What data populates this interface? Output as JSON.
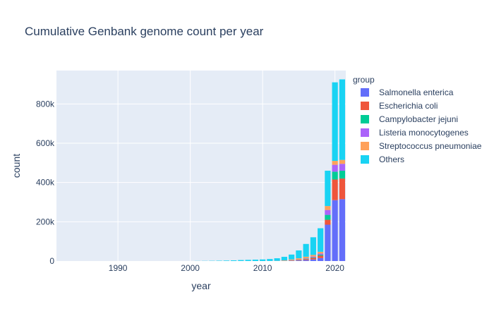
{
  "chart_data": {
    "type": "bar",
    "stacked": true,
    "title": "Cumulative Genbank genome count per year",
    "xlabel": "year",
    "ylabel": "count",
    "xlim": [
      1981.5,
      2021.5
    ],
    "ylim": [
      0,
      970000
    ],
    "xticks": [
      1990,
      2000,
      2010,
      2020
    ],
    "yticks": [
      0,
      200000,
      400000,
      600000,
      800000
    ],
    "ytick_labels": [
      "0",
      "200k",
      "400k",
      "600k",
      "800k"
    ],
    "grid": true,
    "legend": {
      "title": "group",
      "position": "right"
    },
    "x": [
      1982,
      1983,
      1984,
      1985,
      1986,
      1987,
      1988,
      1989,
      1990,
      1991,
      1992,
      1993,
      1994,
      1995,
      1996,
      1997,
      1998,
      1999,
      2000,
      2001,
      2002,
      2003,
      2004,
      2005,
      2006,
      2007,
      2008,
      2009,
      2010,
      2011,
      2012,
      2013,
      2014,
      2015,
      2016,
      2017,
      2018,
      2019,
      2020,
      2021
    ],
    "series": [
      {
        "name": "Salmonella enterica",
        "color": "#636efa",
        "values": [
          0,
          0,
          0,
          0,
          0,
          0,
          0,
          0,
          0,
          0,
          0,
          0,
          0,
          0,
          0,
          0,
          0,
          0,
          0,
          0,
          0,
          0,
          0,
          0,
          0,
          0,
          0,
          0,
          0,
          100,
          200,
          500,
          1500,
          3000,
          5000,
          8000,
          15000,
          185000,
          310000,
          315000
        ]
      },
      {
        "name": "Escherichia coli",
        "color": "#ef553b",
        "values": [
          0,
          0,
          0,
          0,
          0,
          0,
          0,
          0,
          0,
          0,
          0,
          0,
          0,
          0,
          0,
          0,
          0,
          0,
          0,
          0,
          0,
          0,
          0,
          0,
          0,
          0,
          0,
          0,
          100,
          100,
          200,
          500,
          1500,
          3000,
          5000,
          8000,
          12000,
          25000,
          105000,
          105000
        ]
      },
      {
        "name": "Campylobacter jejuni",
        "color": "#00cc96",
        "values": [
          0,
          0,
          0,
          0,
          0,
          0,
          0,
          0,
          0,
          0,
          0,
          0,
          0,
          0,
          0,
          0,
          0,
          0,
          0,
          0,
          0,
          0,
          0,
          0,
          0,
          0,
          0,
          0,
          0,
          0,
          100,
          200,
          500,
          1000,
          2000,
          3000,
          5000,
          25000,
          40000,
          40000
        ]
      },
      {
        "name": "Listeria monocytogenes",
        "color": "#ab63fa",
        "values": [
          0,
          0,
          0,
          0,
          0,
          0,
          0,
          0,
          0,
          0,
          0,
          0,
          0,
          0,
          0,
          0,
          0,
          0,
          0,
          0,
          0,
          0,
          0,
          0,
          0,
          0,
          0,
          0,
          0,
          0,
          100,
          200,
          500,
          1000,
          2000,
          4000,
          6000,
          25000,
          35000,
          35000
        ]
      },
      {
        "name": "Streptococcus pneumoniae",
        "color": "#ffa15a",
        "values": [
          0,
          0,
          0,
          0,
          0,
          0,
          0,
          0,
          0,
          0,
          0,
          0,
          0,
          0,
          0,
          0,
          0,
          0,
          0,
          0,
          0,
          0,
          0,
          0,
          0,
          0,
          0,
          0,
          0,
          100,
          500,
          2000,
          4000,
          6000,
          8000,
          8000,
          9000,
          20000,
          20000,
          20000
        ]
      },
      {
        "name": "Others",
        "color": "#19d3f3",
        "values": [
          0,
          0,
          0,
          0,
          0,
          0,
          0,
          0,
          0,
          0,
          0,
          0,
          0,
          0,
          0,
          0,
          0,
          0,
          0,
          500,
          800,
          1200,
          1800,
          2500,
          3500,
          5000,
          6000,
          7000,
          8000,
          10000,
          13000,
          18000,
          25000,
          40000,
          65000,
          90000,
          120000,
          180000,
          400000,
          410000
        ]
      }
    ]
  }
}
